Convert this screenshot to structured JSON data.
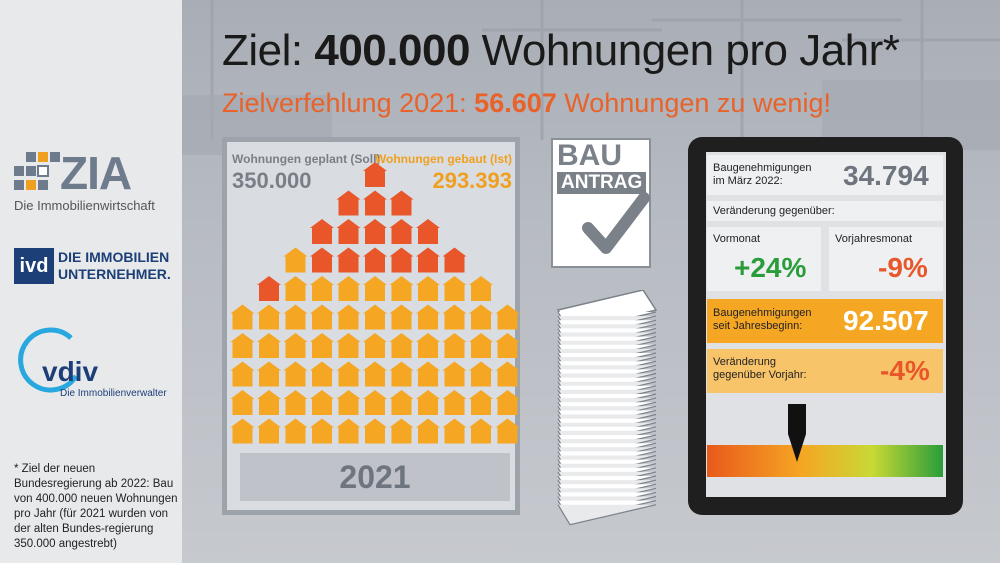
{
  "header": {
    "title_prefix": "Ziel: ",
    "title_bold": "400.000",
    "title_suffix": " Wohnungen pro Jahr*",
    "subtitle_prefix": "Zielverfehlung 2021: ",
    "subtitle_bold": "56.607",
    "subtitle_suffix": " Wohnungen zu wenig!"
  },
  "logos": {
    "zia_word": "ZIA",
    "zia_sub": "Die Immobilienwirtschaft",
    "ivd_box": "ivd",
    "ivd_line1": "DIE IMMOBILIEN",
    "ivd_line2": "UNTERNEHMER.",
    "vdiv_word": "vdiv",
    "vdiv_sub": "Die Immobilienverwalter"
  },
  "footnote": "* Ziel der neuen Bundesregierung ab 2022: Bau von 400.000 neuen Wohnungen pro Jahr (für 2021 wurden von der alten Bundes-regierung 350.000 angestrebt)",
  "housing_panel": {
    "planned_label": "Wohnungen geplant (Soll)",
    "planned_value": "350.000",
    "built_label": "Wohnungen gebaut (Ist)",
    "built_value": "293.393",
    "year": "2021",
    "colors": {
      "built": "#f5a623",
      "missing": "#e8562a"
    }
  },
  "bau_antrag": {
    "word1": "BAU",
    "word2": "ANTRAG"
  },
  "tablet": {
    "permits_march_label1": "Baugenehmigungen",
    "permits_march_label2": "im März 2022:",
    "permits_march_value": "34.794",
    "change_label": "Veränderung gegenüber:",
    "prev_month_label": "Vormonat",
    "prev_month_value": "+24%",
    "prev_year_month_label": "Vorjahresmonat",
    "prev_year_month_value": "-9%",
    "ytd_label1": "Baugenehmigungen",
    "ytd_label2": "seit Jahresbeginn:",
    "ytd_value": "92.507",
    "ytd_change_label1": "Veränderung",
    "ytd_change_label2": "gegenüber Vorjahr:",
    "ytd_change_value": "-4%",
    "gauge_level": 0.38,
    "colors": {
      "green": "#2a9d3a",
      "orange": "#e8562a",
      "ytd_bg": "#f5a623",
      "ytd_change_bg": "#f8c46a"
    }
  }
}
